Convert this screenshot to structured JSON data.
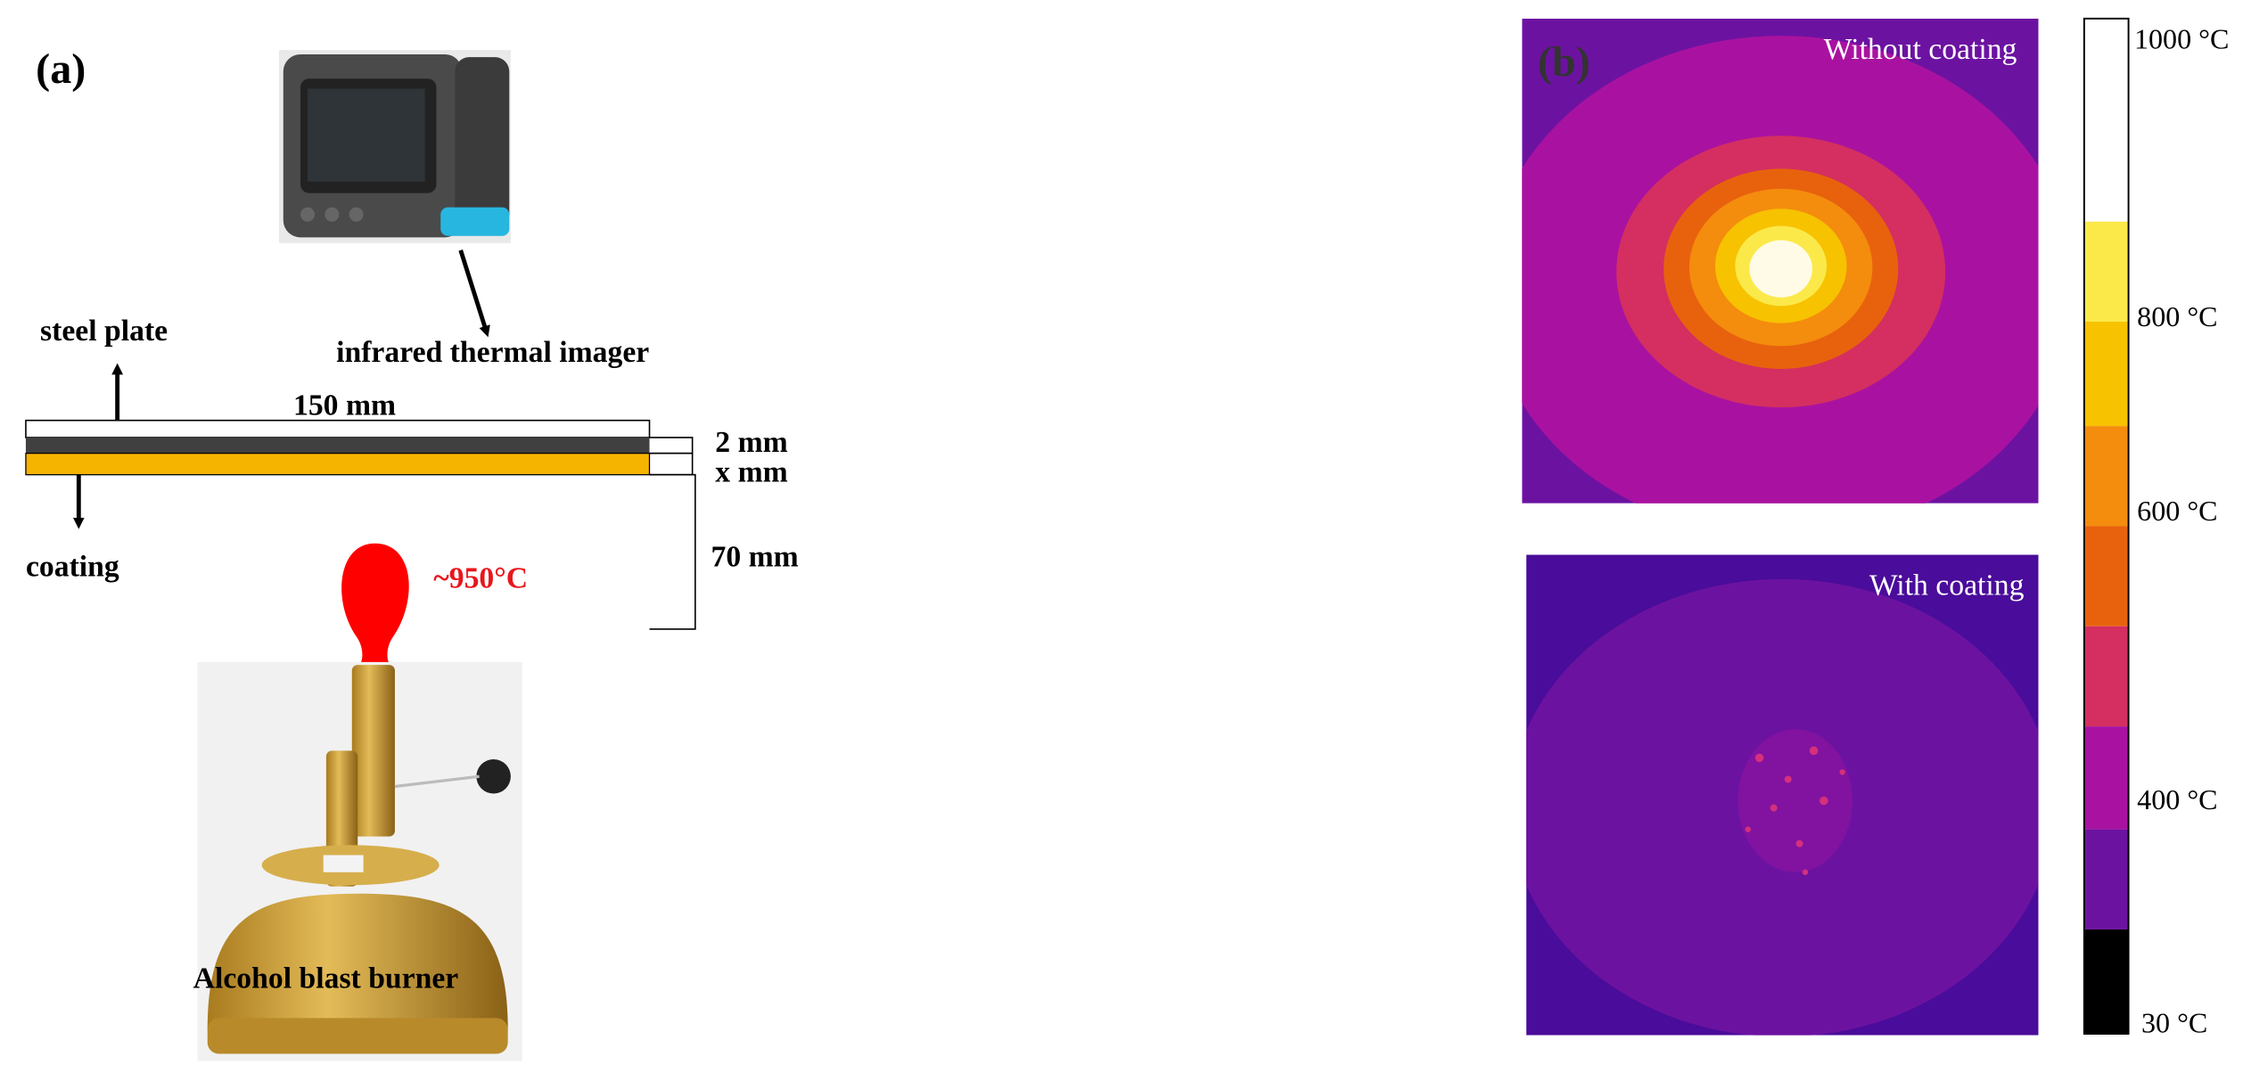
{
  "panel_a": {
    "label": "(a)",
    "camera_label": "infrared thermal imager",
    "plate_label": "steel plate",
    "length_label": "150 mm",
    "plate_thickness": "2 mm",
    "coating_thickness": "x mm",
    "distance": "70 mm",
    "coating_label": "coating",
    "flame_temperature": "~950°C",
    "burner_label": "Alcohol blast burner"
  },
  "panel_b": {
    "label": "(b)",
    "top_image_title": "Without coating",
    "bottom_image_title": "With coating",
    "colorbar_labels": [
      "1000 °C",
      "800 °C",
      "600 °C",
      "400 °C",
      "30 °C"
    ]
  }
}
